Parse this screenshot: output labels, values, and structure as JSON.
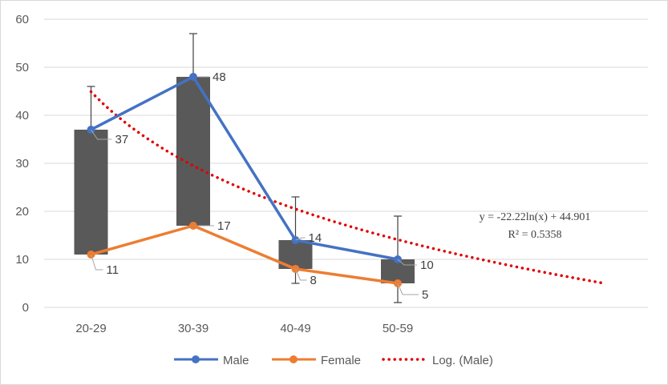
{
  "chart_data": {
    "type": "line",
    "categories": [
      "20-29",
      "30-39",
      "40-49",
      "50-59"
    ],
    "ylim": [
      0,
      60
    ],
    "y_ticks": [
      0,
      10,
      20,
      30,
      40,
      50,
      60
    ],
    "grid": true,
    "legend_position": "bottom",
    "series": [
      {
        "name": "Male",
        "values": [
          37,
          48,
          14,
          10
        ],
        "color": "#4472c4",
        "labels": [
          "37",
          "48",
          "14",
          "10"
        ],
        "error_high": [
          46,
          57,
          23,
          19
        ]
      },
      {
        "name": "Female",
        "values": [
          11,
          17,
          8,
          5
        ],
        "color": "#ed7d31",
        "labels": [
          "11",
          "17",
          "8",
          "5"
        ],
        "error_low": [
          null,
          null,
          5,
          1
        ]
      }
    ],
    "bars": {
      "low": [
        11,
        17,
        8,
        5
      ],
      "high": [
        37,
        48,
        14,
        10
      ],
      "color": "#595959"
    },
    "trendline": {
      "name": "Log. (Male)",
      "type": "logarithmic",
      "a": -22.22,
      "b": 44.901,
      "x_extent": [
        1,
        6
      ],
      "color": "#e00000",
      "equation": "y = -22.22ln(x)  + 44.901",
      "r_squared": "R² = 0.5358"
    }
  }
}
